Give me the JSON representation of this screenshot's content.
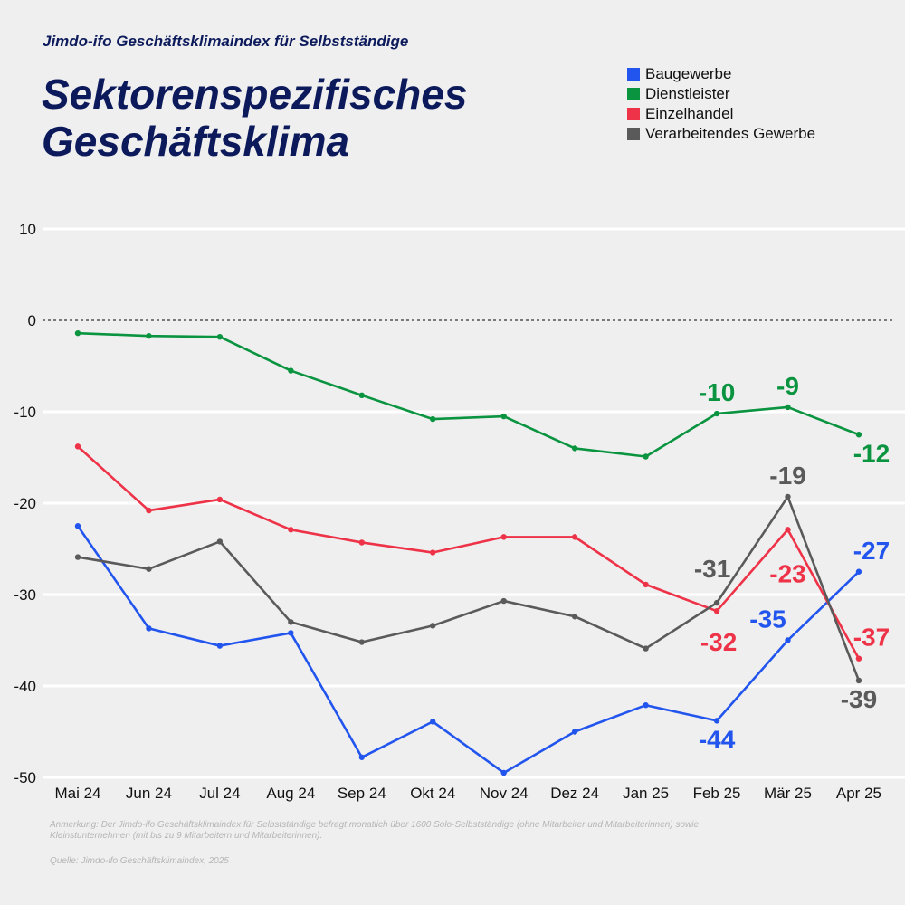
{
  "chart_data": {
    "type": "line",
    "subtitle": "Jimdo-ifo Geschäftsklimaindex für Selbstständige",
    "title_line1": "Sektorenspezifisches",
    "title_line2": "Geschäftsklima",
    "categories": [
      "Mai 24",
      "Jun 24",
      "Jul 24",
      "Aug 24",
      "Sep 24",
      "Okt 24",
      "Nov 24",
      "Dez 24",
      "Jan 25",
      "Feb 25",
      "Mär 25",
      "Apr 25"
    ],
    "yticks": [
      10,
      0,
      -10,
      -20,
      -30,
      -40,
      -50
    ],
    "ytick_labels": [
      "10",
      "0",
      "-10",
      "-20",
      "-30",
      "-40",
      "-50"
    ],
    "ylim": [
      -50,
      10
    ],
    "grid": true,
    "zero_line": "dashed",
    "legend_placement": "top-right",
    "series": [
      {
        "name": "Baugewerbe",
        "color": "#2255ee",
        "values": [
          -22.5,
          -33.7,
          -35.6,
          -34.2,
          -47.8,
          -43.9,
          -49.5,
          -45.0,
          -42.1,
          -43.8,
          -35.0,
          -27.5
        ],
        "labels": [
          {
            "index": 9,
            "text": "-44"
          },
          {
            "index": 10,
            "text": "-35"
          },
          {
            "index": 11,
            "text": "-27"
          }
        ]
      },
      {
        "name": "Dienstleister",
        "color": "#0a9440",
        "values": [
          -1.4,
          -1.7,
          -1.8,
          -5.5,
          -8.2,
          -10.8,
          -10.5,
          -14.0,
          -14.9,
          -10.2,
          -9.5,
          -12.5
        ],
        "labels": [
          {
            "index": 9,
            "text": "-10"
          },
          {
            "index": 10,
            "text": "-9"
          },
          {
            "index": 11,
            "text": "-12"
          }
        ]
      },
      {
        "name": "Einzelhandel",
        "color": "#ee3348",
        "values": [
          -13.8,
          -20.8,
          -19.6,
          -22.9,
          -24.3,
          -25.4,
          -23.7,
          -23.7,
          -28.9,
          -31.8,
          -22.9,
          -37.0
        ],
        "labels": [
          {
            "index": 9,
            "text": "-32"
          },
          {
            "index": 10,
            "text": "-23"
          },
          {
            "index": 11,
            "text": "-37"
          }
        ]
      },
      {
        "name": "Verarbeitendes Gewerbe",
        "color": "#5a5a5a",
        "values": [
          -25.9,
          -27.2,
          -24.2,
          -33.0,
          -35.2,
          -33.4,
          -30.7,
          -32.4,
          -35.9,
          -30.9,
          -19.3,
          -39.4
        ],
        "labels": [
          {
            "index": 9,
            "text": "-31"
          },
          {
            "index": 10,
            "text": "-19"
          },
          {
            "index": 11,
            "text": "-39"
          }
        ]
      }
    ],
    "note": "Anmerkung: Der Jimdo-ifo Geschäftsklimaindex für Selbstständige befragt monatlich über 1600 Solo-Selbstständige (ohne Mitarbeiter und Mitarbeiterinnen) sowie Kleinstunternehmen (mit bis zu 9 Mitarbeitern und Mitarbeiterinnen).",
    "source": "Quelle: Jimdo-ifo Geschäftsklimaindex, 2025"
  }
}
